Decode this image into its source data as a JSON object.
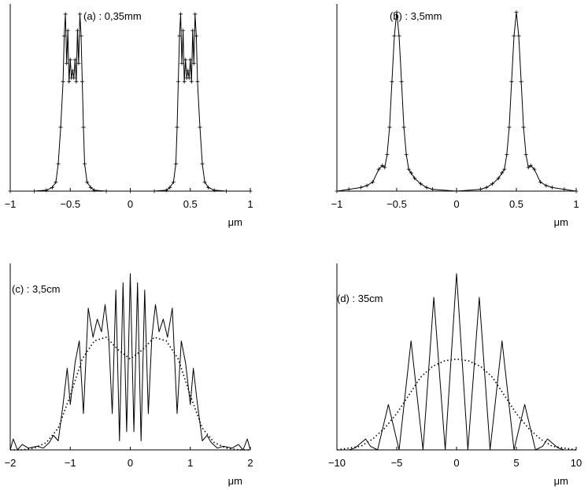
{
  "chart_data": [
    {
      "type": "line",
      "annotation": "(a) : 0,35mm",
      "xlabel": "μm",
      "xlim": [
        -1,
        1
      ],
      "xticks": [
        "−1",
        "−0.5",
        "0",
        "0.5",
        "1"
      ],
      "ylim": [
        0,
        1
      ],
      "grid": false,
      "series": [
        {
          "style": "solid with + markers",
          "x": [
            -1.0,
            -0.8,
            -0.7,
            -0.65,
            -0.62,
            -0.6,
            -0.58,
            -0.56,
            -0.55,
            -0.54,
            -0.53,
            -0.52,
            -0.51,
            -0.5,
            -0.49,
            -0.48,
            -0.47,
            -0.46,
            -0.45,
            -0.44,
            -0.43,
            -0.42,
            -0.41,
            -0.4,
            -0.39,
            -0.38,
            -0.36,
            -0.33,
            -0.3,
            -0.2,
            0.0,
            0.2,
            0.3,
            0.33,
            0.36,
            0.38,
            0.39,
            0.4,
            0.41,
            0.42,
            0.43,
            0.44,
            0.45,
            0.46,
            0.47,
            0.48,
            0.49,
            0.5,
            0.51,
            0.52,
            0.53,
            0.54,
            0.55,
            0.56,
            0.58,
            0.6,
            0.62,
            0.65,
            0.7,
            0.8,
            1.0
          ],
          "y": [
            0.0,
            0.0,
            0.005,
            0.02,
            0.05,
            0.15,
            0.35,
            0.6,
            0.85,
            0.97,
            0.7,
            0.88,
            0.6,
            0.72,
            0.62,
            0.66,
            0.62,
            0.72,
            0.6,
            0.88,
            0.7,
            0.97,
            0.85,
            0.6,
            0.35,
            0.15,
            0.05,
            0.02,
            0.005,
            0.0,
            0.0,
            0.0,
            0.005,
            0.02,
            0.05,
            0.15,
            0.35,
            0.6,
            0.85,
            0.97,
            0.7,
            0.88,
            0.6,
            0.72,
            0.62,
            0.66,
            0.62,
            0.72,
            0.6,
            0.88,
            0.7,
            0.97,
            0.85,
            0.6,
            0.35,
            0.15,
            0.05,
            0.02,
            0.005,
            0.0,
            0.0
          ]
        }
      ]
    },
    {
      "type": "line",
      "annotation": "(b) : 3,5mm",
      "xlabel": "μm",
      "xlim": [
        -1,
        1
      ],
      "xticks": [
        "−1",
        "−0.5",
        "0",
        "0.5",
        "1"
      ],
      "ylim": [
        0,
        1
      ],
      "grid": false,
      "series": [
        {
          "style": "solid with + markers",
          "x": [
            -1.0,
            -0.9,
            -0.8,
            -0.75,
            -0.7,
            -0.65,
            -0.62,
            -0.6,
            -0.58,
            -0.56,
            -0.54,
            -0.52,
            -0.5,
            -0.48,
            -0.46,
            -0.44,
            -0.42,
            -0.4,
            -0.38,
            -0.35,
            -0.3,
            -0.25,
            -0.2,
            0.0,
            0.2,
            0.25,
            0.3,
            0.35,
            0.38,
            0.4,
            0.42,
            0.44,
            0.46,
            0.48,
            0.5,
            0.52,
            0.54,
            0.56,
            0.58,
            0.6,
            0.62,
            0.65,
            0.7,
            0.75,
            0.8,
            0.9,
            1.0
          ],
          "y": [
            0.0,
            0.01,
            0.02,
            0.03,
            0.05,
            0.12,
            0.14,
            0.13,
            0.2,
            0.35,
            0.6,
            0.85,
            0.98,
            0.85,
            0.6,
            0.35,
            0.2,
            0.12,
            0.1,
            0.07,
            0.04,
            0.02,
            0.01,
            0.0,
            0.01,
            0.02,
            0.04,
            0.07,
            0.1,
            0.12,
            0.2,
            0.35,
            0.6,
            0.85,
            0.98,
            0.85,
            0.6,
            0.35,
            0.2,
            0.13,
            0.14,
            0.12,
            0.05,
            0.03,
            0.02,
            0.01,
            0.0
          ]
        }
      ]
    },
    {
      "type": "line",
      "annotation": "(c) : 3,5cm",
      "xlabel": "μm",
      "xlim": [
        -2,
        2
      ],
      "xticks": [
        "−2",
        "−1",
        "0",
        "1",
        "2"
      ],
      "ylim": [
        0,
        1
      ],
      "grid": false,
      "series": [
        {
          "style": "solid",
          "x": [
            -2.0,
            -1.95,
            -1.88,
            -1.8,
            -1.7,
            -1.55,
            -1.45,
            -1.35,
            -1.28,
            -1.2,
            -1.12,
            -1.05,
            -1.0,
            -0.92,
            -0.85,
            -0.78,
            -0.7,
            -0.62,
            -0.55,
            -0.48,
            -0.42,
            -0.36,
            -0.3,
            -0.24,
            -0.18,
            -0.12,
            -0.06,
            0.0,
            0.06,
            0.12,
            0.18,
            0.24,
            0.3,
            0.36,
            0.42,
            0.48,
            0.55,
            0.62,
            0.7,
            0.78,
            0.85,
            0.92,
            1.0,
            1.05,
            1.12,
            1.2,
            1.28,
            1.35,
            1.45,
            1.55,
            1.7,
            1.8,
            1.88,
            1.95,
            2.0
          ],
          "y": [
            0.0,
            0.06,
            0.0,
            0.03,
            0.01,
            0.02,
            0.01,
            0.04,
            0.08,
            0.05,
            0.25,
            0.45,
            0.25,
            0.48,
            0.6,
            0.2,
            0.78,
            0.62,
            0.72,
            0.65,
            0.8,
            0.62,
            0.2,
            0.88,
            0.05,
            0.92,
            0.1,
            0.97,
            0.1,
            0.92,
            0.05,
            0.88,
            0.2,
            0.62,
            0.8,
            0.65,
            0.72,
            0.62,
            0.78,
            0.2,
            0.6,
            0.48,
            0.25,
            0.45,
            0.25,
            0.05,
            0.08,
            0.04,
            0.01,
            0.02,
            0.01,
            0.03,
            0.0,
            0.06,
            0.0
          ]
        },
        {
          "style": "dotted",
          "x": [
            -2.0,
            -1.8,
            -1.6,
            -1.4,
            -1.2,
            -1.0,
            -0.8,
            -0.6,
            -0.4,
            -0.2,
            0.0,
            0.2,
            0.4,
            0.6,
            0.8,
            1.0,
            1.2,
            1.4,
            1.6,
            1.8,
            2.0
          ],
          "y": [
            0.0,
            0.0,
            0.01,
            0.04,
            0.12,
            0.3,
            0.5,
            0.6,
            0.62,
            0.55,
            0.5,
            0.55,
            0.62,
            0.6,
            0.5,
            0.3,
            0.12,
            0.04,
            0.01,
            0.0,
            0.0
          ]
        }
      ]
    },
    {
      "type": "line",
      "annotation": "(d) : 35cm",
      "xlabel": "μm",
      "xlim": [
        -10,
        10
      ],
      "xticks": [
        "−10",
        "−5",
        "0",
        "5",
        "10"
      ],
      "ylim": [
        0,
        1
      ],
      "grid": false,
      "series": [
        {
          "style": "solid",
          "x": [
            -10.0,
            -9.0,
            -8.5,
            -7.6,
            -7.2,
            -6.6,
            -5.7,
            -4.8,
            -3.8,
            -2.8,
            -1.9,
            -0.95,
            0.0,
            0.95,
            1.9,
            2.8,
            3.8,
            4.8,
            5.7,
            6.6,
            7.2,
            7.6,
            8.5,
            9.0,
            10.0
          ],
          "y": [
            0.0,
            0.0,
            0.01,
            0.06,
            0.02,
            0.0,
            0.25,
            0.0,
            0.6,
            0.0,
            0.84,
            0.0,
            0.97,
            0.0,
            0.84,
            0.0,
            0.6,
            0.0,
            0.25,
            0.0,
            0.02,
            0.06,
            0.01,
            0.0,
            0.0
          ]
        },
        {
          "style": "dotted",
          "x": [
            -10.0,
            -8.0,
            -7.0,
            -6.0,
            -5.0,
            -4.0,
            -3.0,
            -2.0,
            -1.0,
            0.0,
            1.0,
            2.0,
            3.0,
            4.0,
            5.0,
            6.0,
            7.0,
            8.0,
            10.0
          ],
          "y": [
            0.0,
            0.02,
            0.06,
            0.12,
            0.2,
            0.3,
            0.4,
            0.46,
            0.49,
            0.5,
            0.49,
            0.46,
            0.4,
            0.3,
            0.2,
            0.12,
            0.06,
            0.02,
            0.0
          ]
        }
      ]
    }
  ]
}
